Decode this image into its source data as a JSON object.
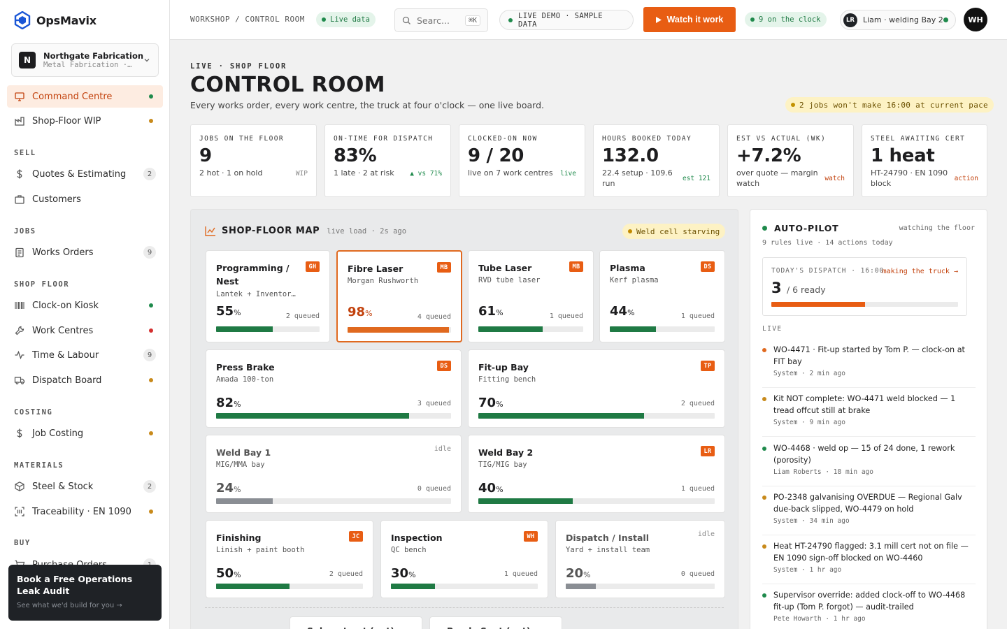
{
  "app": {
    "name": "OpsMavix"
  },
  "org": {
    "badge": "N",
    "name": "Northgate Fabrication",
    "sub": "Metal Fabrication ·…"
  },
  "nav": {
    "command_centre": {
      "label": "Command Centre",
      "dot": "#1f8a4c"
    },
    "shop_floor_wip": {
      "label": "Shop-Floor WIP",
      "dot": "#c88a1b"
    },
    "sell_heading": "SELL",
    "quotes": {
      "label": "Quotes & Estimating",
      "count": "2"
    },
    "customers": {
      "label": "Customers"
    },
    "jobs_heading": "JOBS",
    "works_orders": {
      "label": "Works Orders",
      "count": "9"
    },
    "shop_floor_heading": "SHOP FLOOR",
    "clock_on": {
      "label": "Clock-on Kiosk",
      "dot": "#1f8a4c"
    },
    "work_centres": {
      "label": "Work Centres",
      "dot": "#d42f2f"
    },
    "time_labour": {
      "label": "Time & Labour",
      "count": "9"
    },
    "dispatch": {
      "label": "Dispatch Board",
      "dot": "#c88a1b"
    },
    "costing_heading": "COSTING",
    "job_costing": {
      "label": "Job Costing",
      "dot": "#c88a1b"
    },
    "materials_heading": "MATERIALS",
    "steel_stock": {
      "label": "Steel & Stock",
      "count": "2"
    },
    "traceability": {
      "label": "Traceability · EN 1090",
      "dot": "#c88a1b"
    },
    "buy_heading": "BUY",
    "purchase_orders": {
      "label": "Purchase Orders",
      "count": "1"
    }
  },
  "promo": {
    "title": "Book a Free Operations Leak Audit",
    "sub": "See what we'd build for you →"
  },
  "topbar": {
    "breadcrumb": "WORKSHOP / CONTROL ROOM",
    "live_pill": "Live data",
    "search_placeholder": "Searc...",
    "search_kbd": "⌘K",
    "demo": "LIVE DEMO · SAMPLE DATA",
    "watch": "Watch it work",
    "clock": "9 on the clock",
    "user_initials": "LR",
    "user": "Liam · welding Bay 2",
    "avatar": "WH"
  },
  "header": {
    "eyebrow": "LIVE · SHOP FLOOR",
    "title": "CONTROL ROOM",
    "sub": "Every works order, every work centre, the truck at four o'clock — one live board.",
    "warning": "2 jobs won't make 16:00 at current pace"
  },
  "kpis": [
    {
      "label": "JOBS ON THE FLOOR",
      "value": "9",
      "sub": "2 hot · 1 on hold",
      "tag": "WIP",
      "tag_color": "#888"
    },
    {
      "label": "ON-TIME FOR DISPATCH",
      "value": "83%",
      "sub": "1 late · 2 at risk",
      "tag": "▲ vs 71%",
      "tag_color": "#1f8a4c"
    },
    {
      "label": "CLOCKED-ON NOW",
      "value": "9 / 20",
      "sub": "live on 7 work centres",
      "tag": "live",
      "tag_color": "#1f8a4c"
    },
    {
      "label": "HOURS BOOKED TODAY",
      "value": "132.0",
      "sub": "22.4 setup · 109.6 run",
      "tag": "est 121",
      "tag_color": "#1f8a4c"
    },
    {
      "label": "EST VS ACTUAL (WK)",
      "value": "+7.2%",
      "sub": "over quote — margin watch",
      "tag": "watch",
      "tag_color": "#c2410c"
    },
    {
      "label": "STEEL AWAITING CERT",
      "value": "1 heat",
      "sub": "HT-24790 · EN 1090 block",
      "tag": "action",
      "tag_color": "#c2410c"
    }
  ],
  "map": {
    "title": "SHOP-FLOOR MAP",
    "meta": "live load · 2s ago",
    "alert": "Weld cell starving",
    "pct_sign": "%",
    "centres": [
      {
        "name": "Programming / Nest",
        "desc": "Lantek + Inventor…",
        "badge": "GH",
        "pct": 55,
        "queued": "2 queued",
        "color": "#1f7a44"
      },
      {
        "name": "Fibre Laser",
        "desc": "Morgan Rushworth",
        "badge": "MB",
        "pct": 98,
        "queued": "4 queued",
        "color": "#e0691f"
      },
      {
        "name": "Tube Laser",
        "desc": "RVD tube laser",
        "badge": "MB",
        "pct": 61,
        "queued": "1 queued",
        "color": "#1f7a44"
      },
      {
        "name": "Plasma",
        "desc": "Kerf plasma",
        "badge": "DS",
        "pct": 44,
        "queued": "1 queued",
        "color": "#1f7a44"
      },
      {
        "name": "Press Brake",
        "desc": "Amada 100-ton",
        "badge": "DS",
        "pct": 82,
        "queued": "3 queued",
        "color": "#1f7a44"
      },
      {
        "name": "Fit-up Bay",
        "desc": "Fitting bench",
        "badge": "TP",
        "pct": 70,
        "queued": "2 queued",
        "color": "#1f7a44"
      },
      {
        "name": "Weld Bay 1",
        "desc": "MIG/MMA bay",
        "idle": "idle",
        "pct": 24,
        "queued": "0 queued",
        "color": "#8a8e94"
      },
      {
        "name": "Weld Bay 2",
        "desc": "TIG/MIG bay",
        "badge": "LR",
        "pct": 40,
        "queued": "1 queued",
        "color": "#1f7a44"
      },
      {
        "name": "Finishing",
        "desc": "Linish + paint booth",
        "badge": "JC",
        "pct": 50,
        "queued": "2 queued",
        "color": "#1f7a44"
      },
      {
        "name": "Inspection",
        "desc": "QC bench",
        "badge": "WH",
        "pct": 30,
        "queued": "1 queued",
        "color": "#1f7a44"
      },
      {
        "name": "Dispatch / Install",
        "desc": "Yard + install team",
        "idle": "idle",
        "pct": 20,
        "queued": "0 queued",
        "color": "#8a8e94"
      }
    ],
    "sub_tabs": [
      "Subcontract (out)",
      "Ready Sent (out)"
    ]
  },
  "autopilot": {
    "title": "AUTO-PILOT",
    "watching": "watching the floor",
    "rules": "9 rules live · 14 actions today",
    "dispatch_label": "TODAY'S DISPATCH · 16:00",
    "dispatch_link": "making the truck →",
    "dispatch_ready": "3",
    "dispatch_total": "/ 6 ready",
    "dispatch_progress": 0.5,
    "live_heading": "LIVE",
    "events": [
      {
        "text": "WO-4471 · Fit-up started by Tom P. — clock-on at FIT bay",
        "meta": "System · 2 min ago",
        "color": "#e0691f"
      },
      {
        "text": "Kit NOT complete: WO-4471 weld blocked — 1 tread offcut still at brake",
        "meta": "System · 9 min ago",
        "color": "#c88a1b"
      },
      {
        "text": "WO-4468 · weld op — 15 of 24 done, 1 rework (porosity)",
        "meta": "Liam Roberts · 18 min ago",
        "color": "#1f8a4c"
      },
      {
        "text": "PO-2348 galvanising OVERDUE — Regional Galv due-back slipped, WO-4479 on hold",
        "meta": "System · 34 min ago",
        "color": "#c88a1b"
      },
      {
        "text": "Heat HT-24790 flagged: 3.1 mill cert not on file — EN 1090 sign-off blocked on WO-4460",
        "meta": "System · 1 hr ago",
        "color": "#c88a1b"
      },
      {
        "text": "Supervisor override: added clock-off to WO-4468 fit-up (Tom P. forgot) — audit-trailed",
        "meta": "Pete Howarth · 1 hr ago",
        "color": "#1f8a4c"
      }
    ]
  }
}
